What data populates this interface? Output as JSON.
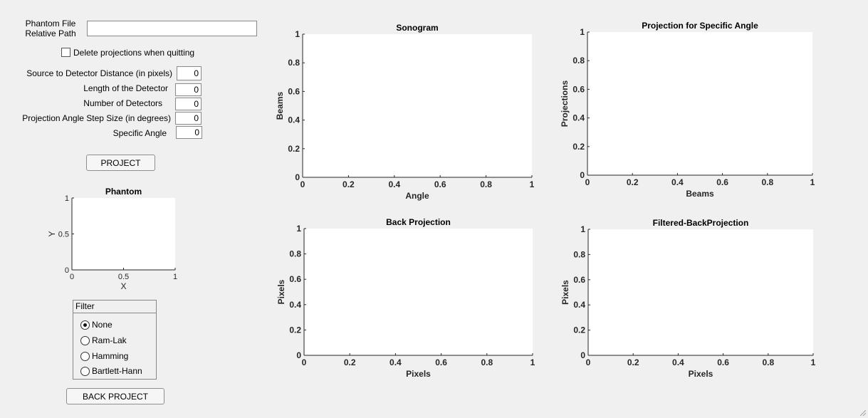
{
  "controls": {
    "phantom_path_label_line1": "Phantom File",
    "phantom_path_label_line2": "Relative Path",
    "phantom_path_value": "",
    "delete_checkbox_label": "Delete projections when quitting",
    "delete_checked": false,
    "source_distance_label": "Source to Detector Distance (in pixels)",
    "source_distance_value": "0",
    "detector_length_label": "Length of the Detector",
    "detector_length_value": "0",
    "num_detectors_label": "Number of Detectors",
    "num_detectors_value": "0",
    "angle_step_label": "Projection Angle Step Size (in degrees)",
    "angle_step_value": "0",
    "specific_angle_label": "Specific  Angle",
    "specific_angle_value": "0",
    "project_button": "PROJECT",
    "back_project_button": "BACK PROJECT"
  },
  "filter": {
    "title": "Filter",
    "options": [
      "None",
      "Ram-Lak",
      "Hamming",
      "Bartlett-Hann"
    ],
    "selected": "None"
  },
  "chart_data": [
    {
      "id": "phantom",
      "type": "scatter",
      "title": "Phantom",
      "xlabel": "X",
      "ylabel": "Y",
      "xlim": [
        0,
        1
      ],
      "ylim": [
        0,
        1
      ],
      "xticks": [
        "0",
        "0.5",
        "1"
      ],
      "yticks": [
        "0",
        "0.5",
        "1"
      ],
      "series": []
    },
    {
      "id": "sonogram",
      "type": "line",
      "title": "Sonogram",
      "xlabel": "Angle",
      "ylabel": "Beams",
      "xlim": [
        0,
        1
      ],
      "ylim": [
        0,
        1
      ],
      "xticks": [
        "0",
        "0.2",
        "0.4",
        "0.6",
        "0.8",
        "1"
      ],
      "yticks": [
        "0",
        "0.2",
        "0.4",
        "0.6",
        "0.8",
        "1"
      ],
      "series": []
    },
    {
      "id": "projection",
      "type": "line",
      "title": "Projection for Specific Angle",
      "xlabel": "Beams",
      "ylabel": "Projections",
      "xlim": [
        0,
        1
      ],
      "ylim": [
        0,
        1
      ],
      "xticks": [
        "0",
        "0.2",
        "0.4",
        "0.6",
        "0.8",
        "1"
      ],
      "yticks": [
        "0",
        "0.2",
        "0.4",
        "0.6",
        "0.8",
        "1"
      ],
      "series": []
    },
    {
      "id": "backprojection",
      "type": "line",
      "title": "Back Projection",
      "xlabel": "Pixels",
      "ylabel": "Pixels",
      "xlim": [
        0,
        1
      ],
      "ylim": [
        0,
        1
      ],
      "xticks": [
        "0",
        "0.2",
        "0.4",
        "0.6",
        "0.8",
        "1"
      ],
      "yticks": [
        "0",
        "0.2",
        "0.4",
        "0.6",
        "0.8",
        "1"
      ],
      "series": []
    },
    {
      "id": "filtered",
      "type": "line",
      "title": "Filtered-BackProjection",
      "xlabel": "Pixels",
      "ylabel": "Pixels",
      "xlim": [
        0,
        1
      ],
      "ylim": [
        0,
        1
      ],
      "xticks": [
        "0",
        "0.2",
        "0.4",
        "0.6",
        "0.8",
        "1"
      ],
      "yticks": [
        "0",
        "0.2",
        "0.4",
        "0.6",
        "0.8",
        "1"
      ],
      "series": []
    }
  ]
}
